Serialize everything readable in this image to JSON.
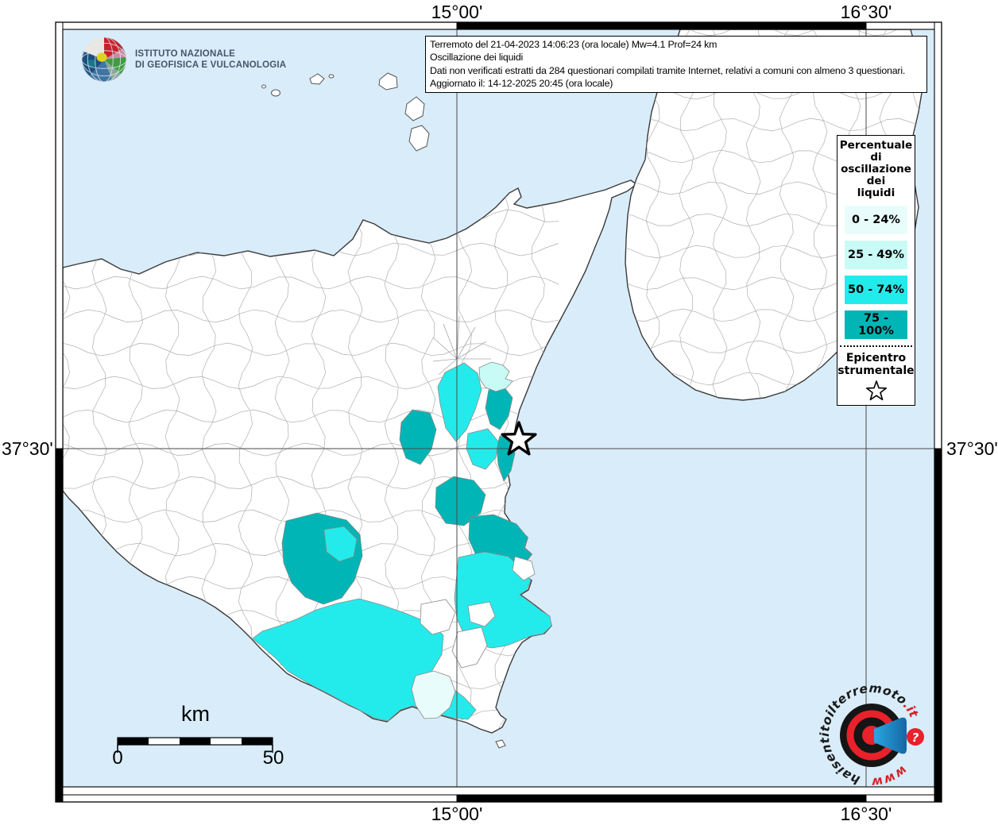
{
  "info_box": {
    "line1": "Terremoto del 21-04-2023 14:06:23 (ora locale) Mw=4.1 Prof=24 km",
    "line2": "Oscillazione dei liquidi",
    "line3": "Dati non verificati estratti da 284 questionari compilati tramite Internet, relativi a comuni con almeno 3 questionari.",
    "line4": "Aggiornato il: 14-12-2025 20:45 (ora locale)"
  },
  "legend": {
    "title": "Percentuale\ndi\noscillazione\ndei\nliquidi",
    "classes": [
      {
        "label": "0 - 24%",
        "color": "#e8fdfb"
      },
      {
        "label": "25 - 49%",
        "color": "#c9fbf6"
      },
      {
        "label": "50 - 74%",
        "color": "#24ebeb"
      },
      {
        "label": "75 - 100%",
        "color": "#00b5b5"
      }
    ],
    "epicenter_label": "Epicentro\nstrumentale"
  },
  "axes": {
    "top_left": "15°00'",
    "top_right": "16°30'",
    "bottom_left": "15°00'",
    "bottom_right": "16°30'",
    "left": "37°30'",
    "right": "37°30'"
  },
  "scale_bar": {
    "unit": "km",
    "start": "0",
    "end": "50"
  },
  "logos": {
    "ingv": {
      "line1": "ISTITUTO NAZIONALE",
      "line2": "DI GEOFISICA E VULCANOLOGIA"
    },
    "hsit": {
      "www": "www.",
      "body": "haisentitoilterremoto",
      "tld": ".it",
      "question_mark": "?"
    }
  },
  "map": {
    "sea_color": "#d9ecf9",
    "land_color": "#ffffff",
    "boundary_color": "#9a9a9a",
    "epicenter_symbol": "star"
  }
}
